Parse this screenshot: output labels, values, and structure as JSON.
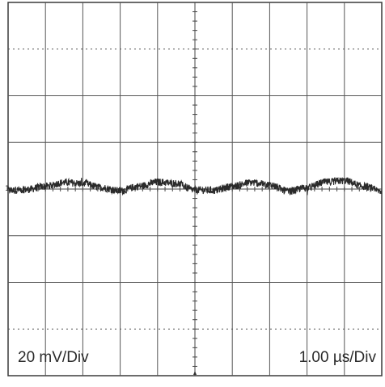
{
  "chart_data": {
    "type": "line",
    "x_divisions": 10,
    "y_divisions": 8,
    "vertical_scale": "20 mV/Div",
    "time_scale": "1.00 µs/Div",
    "channel_marker": "1",
    "grid": true,
    "trace_color": "#2a2a2a",
    "series": [
      {
        "x_div": [
          0.0,
          0.5,
          1.0,
          1.5,
          2.0,
          2.5,
          3.0,
          3.5,
          4.0,
          4.5,
          5.0,
          5.5,
          6.0,
          6.5,
          7.0,
          7.5,
          8.0,
          8.5,
          9.0,
          9.5,
          10.0
        ],
        "y_div": [
          -0.03,
          -0.01,
          0.06,
          0.14,
          0.12,
          0.03,
          -0.04,
          0.06,
          0.15,
          0.12,
          -0.02,
          -0.03,
          0.06,
          0.14,
          0.09,
          -0.05,
          0.03,
          0.15,
          0.18,
          0.06,
          -0.05
        ]
      }
    ]
  }
}
